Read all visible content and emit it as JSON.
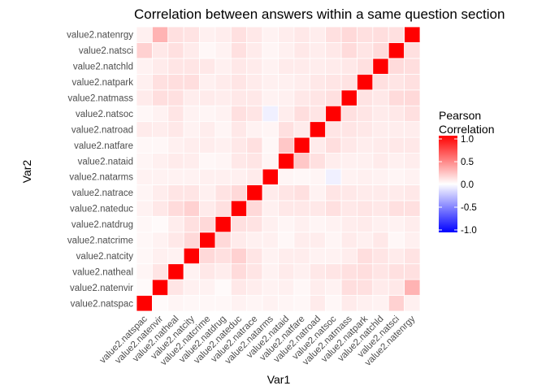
{
  "chart_data": {
    "type": "heatmap",
    "title": "Correlation between answers within a same question section",
    "xlabel": "Var1",
    "ylabel": "Var2",
    "variables": [
      "value2.natspac",
      "value2.natenvir",
      "value2.natheal",
      "value2.natcity",
      "value2.natcrime",
      "value2.natdrug",
      "value2.nateduc",
      "value2.natrace",
      "value2.natarms",
      "value2.nataid",
      "value2.natfare",
      "value2.natroad",
      "value2.natsoc",
      "value2.natmass",
      "value2.natpark",
      "value2.natchld",
      "value2.natsci",
      "value2.natenrgy"
    ],
    "matrix": [
      [
        1.0,
        0.02,
        0.04,
        0.03,
        0.03,
        0.03,
        0.05,
        0.04,
        0.05,
        0.04,
        0.03,
        0.08,
        0.03,
        0.08,
        0.06,
        0.05,
        0.18,
        0.06
      ],
      [
        0.02,
        1.0,
        0.1,
        0.06,
        0.05,
        0.02,
        0.09,
        0.07,
        0.05,
        0.06,
        0.03,
        0.07,
        0.05,
        0.13,
        0.12,
        0.08,
        0.09,
        0.3
      ],
      [
        0.04,
        0.1,
        1.0,
        0.05,
        0.09,
        0.07,
        0.14,
        0.1,
        0.05,
        0.08,
        0.06,
        0.09,
        0.1,
        0.12,
        0.13,
        0.1,
        0.12,
        0.12
      ],
      [
        0.03,
        0.06,
        0.05,
        1.0,
        0.15,
        0.12,
        0.18,
        0.1,
        0.05,
        0.07,
        0.07,
        0.05,
        0.05,
        0.07,
        0.13,
        0.1,
        0.08,
        0.11
      ],
      [
        0.03,
        0.05,
        0.09,
        0.15,
        1.0,
        0.15,
        0.08,
        0.06,
        0.06,
        0.03,
        0.07,
        0.07,
        0.04,
        0.08,
        0.06,
        0.09,
        0.03,
        0.06
      ],
      [
        0.03,
        0.02,
        0.07,
        0.12,
        0.15,
        1.0,
        0.12,
        0.11,
        0.06,
        0.04,
        0.06,
        0.04,
        0.05,
        0.07,
        0.08,
        0.06,
        0.05,
        0.07
      ],
      [
        0.05,
        0.09,
        0.14,
        0.18,
        0.08,
        0.12,
        1.0,
        0.15,
        0.06,
        0.09,
        0.09,
        0.09,
        0.12,
        0.09,
        0.1,
        0.09,
        0.12,
        0.12
      ],
      [
        0.04,
        0.07,
        0.1,
        0.1,
        0.06,
        0.11,
        0.15,
        1.0,
        0.08,
        0.1,
        0.12,
        0.05,
        0.1,
        0.09,
        0.08,
        0.08,
        0.08,
        0.09
      ],
      [
        0.05,
        0.05,
        0.05,
        0.05,
        0.06,
        0.06,
        0.06,
        0.08,
        1.0,
        0.04,
        0.03,
        0.04,
        -0.06,
        0.05,
        0.06,
        0.05,
        0.04,
        0.05
      ],
      [
        0.04,
        0.06,
        0.08,
        0.07,
        0.03,
        0.04,
        0.09,
        0.1,
        0.04,
        1.0,
        0.22,
        0.12,
        0.07,
        0.06,
        0.06,
        0.08,
        0.06,
        0.07
      ],
      [
        0.03,
        0.03,
        0.06,
        0.07,
        0.07,
        0.06,
        0.09,
        0.12,
        0.03,
        0.22,
        1.0,
        0.08,
        0.13,
        0.09,
        0.07,
        0.08,
        0.09,
        0.09
      ],
      [
        0.08,
        0.07,
        0.09,
        0.05,
        0.07,
        0.04,
        0.09,
        0.05,
        0.04,
        0.12,
        0.08,
        1.0,
        0.1,
        0.1,
        0.09,
        0.07,
        0.07,
        0.07
      ],
      [
        0.03,
        0.05,
        0.1,
        0.05,
        0.04,
        0.05,
        0.12,
        0.1,
        -0.06,
        0.07,
        0.13,
        0.1,
        1.0,
        0.12,
        0.1,
        0.08,
        0.09,
        0.12
      ],
      [
        0.08,
        0.13,
        0.12,
        0.07,
        0.08,
        0.07,
        0.09,
        0.09,
        0.05,
        0.06,
        0.09,
        0.1,
        0.12,
        1.0,
        0.11,
        0.09,
        0.14,
        0.15
      ],
      [
        0.06,
        0.12,
        0.13,
        0.13,
        0.06,
        0.08,
        0.1,
        0.08,
        0.06,
        0.06,
        0.07,
        0.09,
        0.1,
        0.11,
        1.0,
        0.12,
        0.1,
        0.12
      ],
      [
        0.05,
        0.08,
        0.1,
        0.1,
        0.09,
        0.06,
        0.09,
        0.08,
        0.05,
        0.08,
        0.08,
        0.07,
        0.08,
        0.09,
        0.12,
        1.0,
        0.14,
        0.13
      ],
      [
        0.18,
        0.09,
        0.12,
        0.08,
        0.03,
        0.05,
        0.12,
        0.08,
        0.04,
        0.06,
        0.09,
        0.07,
        0.09,
        0.14,
        0.1,
        0.14,
        1.0,
        0.12
      ],
      [
        0.06,
        0.3,
        0.12,
        0.11,
        0.06,
        0.07,
        0.12,
        0.09,
        0.05,
        0.07,
        0.09,
        0.07,
        0.12,
        0.15,
        0.12,
        0.13,
        0.12,
        1.0
      ]
    ],
    "colorscale": {
      "low": "#0000ff",
      "mid": "#ffffff",
      "high": "#ff0000",
      "limits": [
        -1,
        1
      ]
    },
    "legend": {
      "title_lines": [
        "Pearson",
        "Correlation"
      ],
      "ticks": [
        1.0,
        0.5,
        0.0,
        -0.5,
        -1.0
      ],
      "tick_labels": [
        "1.0",
        "0.5",
        "0.0",
        "-0.5",
        "-1.0"
      ],
      "placement": "right"
    },
    "background": "#ffffff",
    "grid": "white cell borders"
  }
}
